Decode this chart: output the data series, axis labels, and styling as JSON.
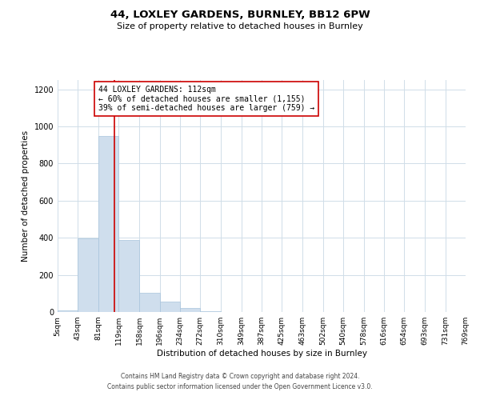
{
  "title": "44, LOXLEY GARDENS, BURNLEY, BB12 6PW",
  "subtitle": "Size of property relative to detached houses in Burnley",
  "xlabel": "Distribution of detached houses by size in Burnley",
  "ylabel": "Number of detached properties",
  "bar_color": "#cfdeed",
  "bar_edge_color": "#a8c4dc",
  "bin_edges": [
    5,
    43,
    81,
    119,
    158,
    196,
    234,
    272,
    310,
    349,
    387,
    425,
    463,
    502,
    540,
    578,
    616,
    654,
    693,
    731,
    769
  ],
  "bin_labels": [
    "5sqm",
    "43sqm",
    "81sqm",
    "119sqm",
    "158sqm",
    "196sqm",
    "234sqm",
    "272sqm",
    "310sqm",
    "349sqm",
    "387sqm",
    "425sqm",
    "463sqm",
    "502sqm",
    "540sqm",
    "578sqm",
    "616sqm",
    "654sqm",
    "693sqm",
    "731sqm",
    "769sqm"
  ],
  "counts": [
    10,
    395,
    950,
    390,
    105,
    55,
    22,
    5,
    1,
    0,
    1,
    0,
    0,
    0,
    0,
    0,
    0,
    0,
    0,
    0
  ],
  "property_line_x": 112,
  "property_line_color": "#cc0000",
  "ylim": [
    0,
    1250
  ],
  "yticks": [
    0,
    200,
    400,
    600,
    800,
    1000,
    1200
  ],
  "annotation_text": "44 LOXLEY GARDENS: 112sqm\n← 60% of detached houses are smaller (1,155)\n39% of semi-detached houses are larger (759) →",
  "annotation_box_color": "#ffffff",
  "annotation_box_edge": "#cc0000",
  "footer_line1": "Contains HM Land Registry data © Crown copyright and database right 2024.",
  "footer_line2": "Contains public sector information licensed under the Open Government Licence v3.0.",
  "background_color": "#ffffff",
  "grid_color": "#d0dde8"
}
